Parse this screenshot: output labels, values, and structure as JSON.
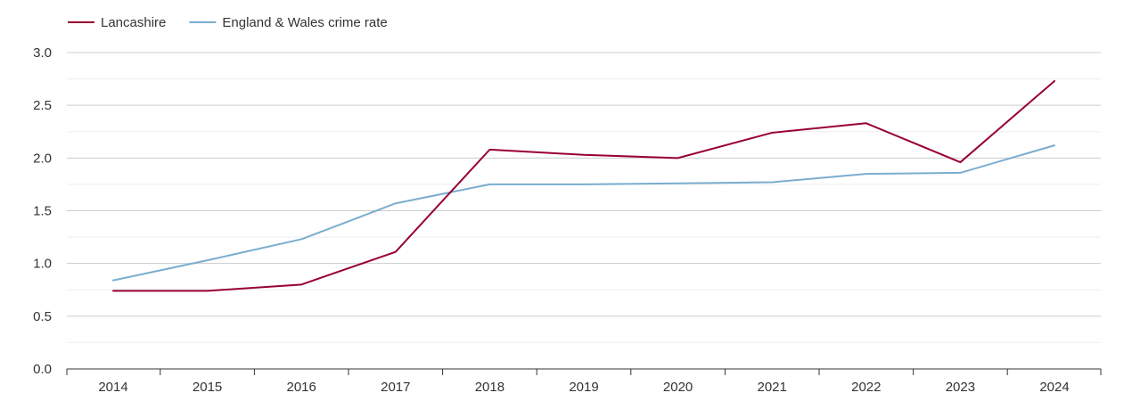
{
  "chart_data": {
    "type": "line",
    "title": "",
    "xlabel": "",
    "ylabel": "",
    "categories": [
      "2014",
      "2015",
      "2016",
      "2017",
      "2018",
      "2019",
      "2020",
      "2021",
      "2022",
      "2023",
      "2024"
    ],
    "ylim": [
      0,
      3.0
    ],
    "yticks": [
      "0.0",
      "0.5",
      "1.0",
      "1.5",
      "2.0",
      "2.5",
      "3.0"
    ],
    "ytick_values": [
      0,
      0.5,
      1.0,
      1.5,
      2.0,
      2.5,
      3.0
    ],
    "minor_gridlines": [
      0.25,
      0.75,
      1.25,
      1.75,
      2.25,
      2.75
    ],
    "grid": true,
    "legend_position": "top-left",
    "series": [
      {
        "name": "Lancashire",
        "color": "#990033",
        "values": [
          0.74,
          0.74,
          0.8,
          1.11,
          2.08,
          2.03,
          2.0,
          2.24,
          2.33,
          1.96,
          2.73
        ]
      },
      {
        "name": "England & Wales crime rate",
        "color": "#7aadcf",
        "values": [
          0.84,
          1.03,
          1.23,
          1.57,
          1.75,
          1.75,
          1.76,
          1.77,
          1.85,
          1.86,
          2.12
        ]
      }
    ]
  }
}
